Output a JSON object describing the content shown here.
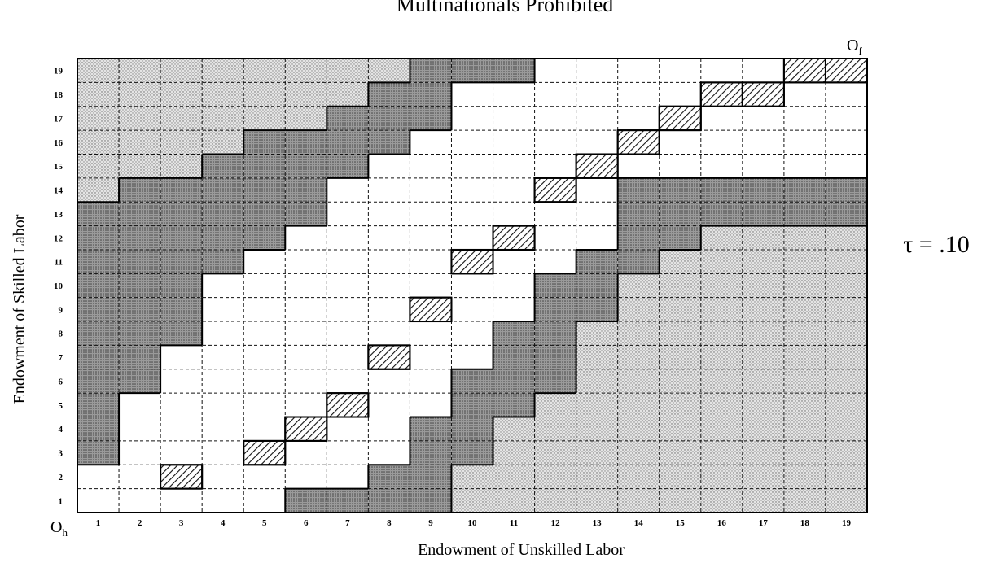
{
  "figure": {
    "title": "Multinationals Prohibited",
    "x_label": "Endowment of Unskilled Labor",
    "y_label": "Endowment of Skilled Labor",
    "tau_label": "τ = .10",
    "origin_home": {
      "base": "O",
      "sub": "h"
    },
    "origin_foreign": {
      "base": "O",
      "sub": "f"
    },
    "x_ticks": [
      1,
      2,
      3,
      4,
      5,
      6,
      7,
      8,
      9,
      10,
      11,
      12,
      13,
      14,
      15,
      16,
      17,
      18,
      19
    ],
    "y_ticks": [
      1,
      2,
      3,
      4,
      5,
      6,
      7,
      8,
      9,
      10,
      11,
      12,
      13,
      14,
      15,
      16,
      17,
      18,
      19
    ],
    "rows": [
      "WWWWWDDDDLLLLLLLLLL",
      "WWHWWWWDDLLLLLLLLLL",
      "DWWWHWWWDDLLLLLLLLL",
      "DWWWWHWWDDLLLLLLLLL",
      "DWWWWWHWWDDLLLLLLLL",
      "DDWWWWWWWDDDLLLLLLL",
      "DDWWWWWHWWDDLLLLLLL",
      "DDDWWWWWWWDDLLLLLLL",
      "DDDWWWWWHWWDDLLLLLL",
      "DDDWWWWWWWWDDLLLLLL",
      "DDDDWWWWWHWWDDLLLLL",
      "DDDDDWWWWWHWWDDLLLL",
      "DDDDDDWWWWWWWDDDDDD",
      "LDDDDDWWWWWHWDDDDDD",
      "LLLDDDDWWWWWHWWWWWW",
      "LLLLDDDDWWWWWHWWWWW",
      "LLLLLLDDDWWWWWHWWWW",
      "LLLLLLLDDWWWWWWHHWW",
      "LLLLLLLLDDDWWWWWWHH"
    ]
  }
}
